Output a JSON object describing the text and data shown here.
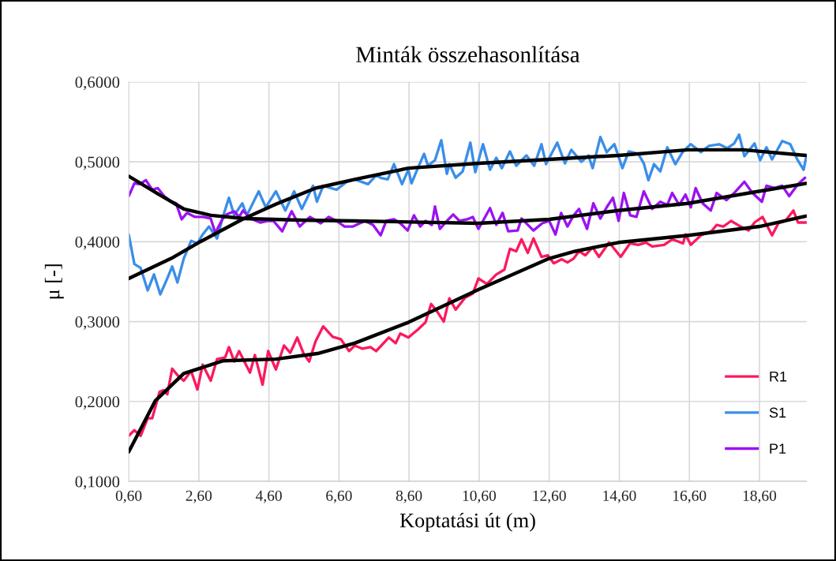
{
  "chart_data": {
    "type": "line",
    "title": "Minták összehasonlítása",
    "xlabel": "Koptatási út (m)",
    "ylabel": "μ [-]",
    "xlim": [
      0.6,
      19.95
    ],
    "ylim": [
      0.1,
      0.6
    ],
    "xticks": [
      {
        "value": 0.6,
        "label": "0,60"
      },
      {
        "value": 2.6,
        "label": "2,60"
      },
      {
        "value": 4.6,
        "label": "4,60"
      },
      {
        "value": 6.6,
        "label": "6,60"
      },
      {
        "value": 8.6,
        "label": "8,60"
      },
      {
        "value": 10.6,
        "label": "10,60"
      },
      {
        "value": 12.6,
        "label": "12,60"
      },
      {
        "value": 14.6,
        "label": "14,60"
      },
      {
        "value": 16.6,
        "label": "16,60"
      },
      {
        "value": 18.6,
        "label": "18,60"
      }
    ],
    "yticks": [
      {
        "value": 0.1,
        "label": "0,1000"
      },
      {
        "value": 0.2,
        "label": "0,2000"
      },
      {
        "value": 0.3,
        "label": "0,3000"
      },
      {
        "value": 0.4,
        "label": "0,4000"
      },
      {
        "value": 0.5,
        "label": "0,5000"
      },
      {
        "value": 0.6,
        "label": "0,6000"
      }
    ],
    "grid": true,
    "legend": "bottom right",
    "marker": "none",
    "line_style": "solid",
    "series": [
      {
        "name": "R1",
        "color": "#fb1a5e",
        "x": [
          0.6,
          0.76,
          0.94,
          1.14,
          1.27,
          1.48,
          1.59,
          1.7,
          1.84,
          1.99,
          2.17,
          2.38,
          2.56,
          2.71,
          2.94,
          3.12,
          3.35,
          3.46,
          3.61,
          3.75,
          4.06,
          4.2,
          4.42,
          4.58,
          4.8,
          5.03,
          5.21,
          5.41,
          5.59,
          5.75,
          5.93,
          6.15,
          6.42,
          6.65,
          6.89,
          7.05,
          7.27,
          7.5,
          7.66,
          8.02,
          8.22,
          8.35,
          8.58,
          8.85,
          9.07,
          9.23,
          9.41,
          9.59,
          9.75,
          9.93,
          10.2,
          10.42,
          10.58,
          10.82,
          11.09,
          11.32,
          11.48,
          11.66,
          11.81,
          11.99,
          12.15,
          12.38,
          12.56,
          12.73,
          12.96,
          13.12,
          13.3,
          13.45,
          13.63,
          13.84,
          14.02,
          14.31,
          14.64,
          14.91,
          15.14,
          15.36,
          15.54,
          15.88,
          16.11,
          16.42,
          16.49,
          16.64,
          16.93,
          17.23,
          17.38,
          17.57,
          17.79,
          18.06,
          18.29,
          18.46,
          18.69,
          18.96,
          19.14,
          19.34,
          19.57,
          19.7,
          19.93
        ],
        "values": [
          0.157,
          0.164,
          0.157,
          0.179,
          0.179,
          0.212,
          0.214,
          0.209,
          0.241,
          0.233,
          0.226,
          0.238,
          0.215,
          0.246,
          0.226,
          0.253,
          0.255,
          0.268,
          0.25,
          0.263,
          0.236,
          0.258,
          0.221,
          0.263,
          0.24,
          0.27,
          0.261,
          0.28,
          0.26,
          0.25,
          0.275,
          0.294,
          0.281,
          0.278,
          0.263,
          0.27,
          0.266,
          0.268,
          0.263,
          0.28,
          0.273,
          0.285,
          0.28,
          0.29,
          0.299,
          0.322,
          0.312,
          0.3,
          0.329,
          0.315,
          0.33,
          0.335,
          0.354,
          0.347,
          0.359,
          0.365,
          0.391,
          0.388,
          0.403,
          0.386,
          0.404,
          0.381,
          0.383,
          0.373,
          0.378,
          0.374,
          0.379,
          0.388,
          0.383,
          0.393,
          0.381,
          0.399,
          0.381,
          0.398,
          0.396,
          0.399,
          0.394,
          0.396,
          0.403,
          0.398,
          0.409,
          0.396,
          0.408,
          0.413,
          0.421,
          0.419,
          0.426,
          0.419,
          0.414,
          0.424,
          0.431,
          0.408,
          0.423,
          0.426,
          0.439,
          0.424,
          0.424
        ]
      },
      {
        "name": "S1",
        "color": "#3a8ee8",
        "x": [
          0.6,
          0.76,
          0.94,
          1.14,
          1.32,
          1.5,
          1.7,
          1.84,
          1.99,
          2.17,
          2.38,
          2.56,
          2.71,
          2.89,
          3.12,
          3.3,
          3.46,
          3.61,
          3.84,
          3.97,
          4.31,
          4.51,
          4.8,
          5.07,
          5.32,
          5.54,
          5.86,
          5.97,
          6.15,
          6.53,
          6.82,
          7.05,
          7.43,
          7.66,
          7.79,
          7.99,
          8.17,
          8.4,
          8.58,
          8.67,
          8.85,
          9.03,
          9.14,
          9.34,
          9.52,
          9.68,
          9.75,
          9.93,
          10.13,
          10.35,
          10.49,
          10.71,
          10.91,
          11.09,
          11.25,
          11.48,
          11.66,
          11.95,
          12.17,
          12.38,
          12.51,
          12.83,
          13.05,
          13.23,
          13.52,
          13.72,
          13.84,
          14.06,
          14.24,
          14.46,
          14.69,
          14.87,
          15.14,
          15.3,
          15.43,
          15.59,
          15.77,
          15.97,
          16.2,
          16.42,
          16.64,
          16.93,
          17.16,
          17.45,
          17.68,
          17.88,
          18.02,
          18.17,
          18.46,
          18.62,
          18.8,
          18.96,
          19.25,
          19.48,
          19.68,
          19.86,
          19.93
        ],
        "values": [
          0.409,
          0.372,
          0.367,
          0.339,
          0.359,
          0.334,
          0.354,
          0.369,
          0.349,
          0.379,
          0.401,
          0.398,
          0.409,
          0.419,
          0.404,
          0.433,
          0.455,
          0.433,
          0.448,
          0.433,
          0.463,
          0.443,
          0.463,
          0.439,
          0.463,
          0.441,
          0.47,
          0.45,
          0.47,
          0.465,
          0.475,
          0.478,
          0.472,
          0.483,
          0.48,
          0.478,
          0.497,
          0.472,
          0.49,
          0.473,
          0.492,
          0.51,
          0.495,
          0.502,
          0.527,
          0.485,
          0.497,
          0.48,
          0.488,
          0.524,
          0.487,
          0.522,
          0.49,
          0.505,
          0.492,
          0.513,
          0.495,
          0.508,
          0.495,
          0.522,
          0.497,
          0.524,
          0.498,
          0.515,
          0.5,
          0.508,
          0.492,
          0.531,
          0.512,
          0.522,
          0.492,
          0.513,
          0.51,
          0.498,
          0.477,
          0.497,
          0.488,
          0.518,
          0.497,
          0.513,
          0.522,
          0.512,
          0.52,
          0.522,
          0.517,
          0.523,
          0.534,
          0.507,
          0.523,
          0.502,
          0.518,
          0.503,
          0.526,
          0.522,
          0.503,
          0.49,
          0.505
        ]
      },
      {
        "name": "P1",
        "color": "#9b12f2",
        "x": [
          0.6,
          0.76,
          0.91,
          1.09,
          1.27,
          1.43,
          1.61,
          1.81,
          1.95,
          2.11,
          2.26,
          2.49,
          2.71,
          2.94,
          3.07,
          3.27,
          3.39,
          3.61,
          3.75,
          3.86,
          4.08,
          4.35,
          4.58,
          4.73,
          4.98,
          5.25,
          5.48,
          5.77,
          6.08,
          6.31,
          6.53,
          6.76,
          7.0,
          7.34,
          7.57,
          7.79,
          7.95,
          8.17,
          8.35,
          8.56,
          8.74,
          8.92,
          9.07,
          9.25,
          9.34,
          9.48,
          9.68,
          9.86,
          10.04,
          10.26,
          10.42,
          10.58,
          10.71,
          10.91,
          11.09,
          11.27,
          11.43,
          11.7,
          11.81,
          12.15,
          12.4,
          12.6,
          12.78,
          12.94,
          13.12,
          13.3,
          13.45,
          13.68,
          13.86,
          14.06,
          14.24,
          14.42,
          14.58,
          14.73,
          14.91,
          15.09,
          15.3,
          15.54,
          15.77,
          15.97,
          16.11,
          16.31,
          16.49,
          16.64,
          16.78,
          16.98,
          17.21,
          17.38,
          17.66,
          17.88,
          18.17,
          18.4,
          18.67,
          18.8,
          19.03,
          19.25,
          19.45,
          19.7,
          19.9
        ],
        "values": [
          0.457,
          0.473,
          0.472,
          0.477,
          0.465,
          0.467,
          0.457,
          0.45,
          0.448,
          0.428,
          0.436,
          0.431,
          0.431,
          0.429,
          0.411,
          0.428,
          0.434,
          0.438,
          0.431,
          0.439,
          0.429,
          0.424,
          0.426,
          0.426,
          0.413,
          0.438,
          0.419,
          0.431,
          0.423,
          0.431,
          0.426,
          0.419,
          0.419,
          0.426,
          0.421,
          0.408,
          0.426,
          0.428,
          0.423,
          0.414,
          0.433,
          0.419,
          0.426,
          0.421,
          0.444,
          0.416,
          0.426,
          0.434,
          0.426,
          0.428,
          0.431,
          0.416,
          0.426,
          0.442,
          0.421,
          0.436,
          0.413,
          0.414,
          0.429,
          0.414,
          0.423,
          0.426,
          0.409,
          0.436,
          0.419,
          0.433,
          0.441,
          0.416,
          0.448,
          0.429,
          0.443,
          0.455,
          0.426,
          0.461,
          0.433,
          0.431,
          0.463,
          0.441,
          0.45,
          0.446,
          0.461,
          0.446,
          0.459,
          0.443,
          0.467,
          0.448,
          0.439,
          0.461,
          0.452,
          0.461,
          0.475,
          0.461,
          0.45,
          0.47,
          0.467,
          0.47,
          0.457,
          0.472,
          0.48
        ]
      },
      {
        "color": "#000000",
        "x": [
          0.6,
          1.36,
          2.17,
          3.3,
          4.8,
          5.99,
          7.05,
          8.58,
          10.58,
          12.6,
          13.34,
          14.58,
          16.58,
          18.6,
          19.93
        ],
        "values": [
          0.137,
          0.201,
          0.235,
          0.251,
          0.253,
          0.26,
          0.273,
          0.299,
          0.34,
          0.379,
          0.388,
          0.399,
          0.408,
          0.419,
          0.432
        ]
      },
      {
        "color": "#000000",
        "x": [
          0.6,
          1.81,
          2.6,
          3.84,
          4.8,
          5.93,
          7.05,
          8.58,
          10.58,
          12.6,
          14.58,
          16.56,
          18.13,
          19.93
        ],
        "values": [
          0.354,
          0.379,
          0.399,
          0.428,
          0.447,
          0.467,
          0.478,
          0.492,
          0.498,
          0.503,
          0.508,
          0.515,
          0.515,
          0.508
        ]
      },
      {
        "color": "#000000",
        "x": [
          0.6,
          1.43,
          2.17,
          2.94,
          3.9,
          5.54,
          7.05,
          10.58,
          12.6,
          14.58,
          16.56,
          18.58,
          19.93
        ],
        "values": [
          0.482,
          0.46,
          0.441,
          0.433,
          0.429,
          0.427,
          0.426,
          0.423,
          0.428,
          0.439,
          0.448,
          0.463,
          0.473
        ]
      }
    ]
  }
}
